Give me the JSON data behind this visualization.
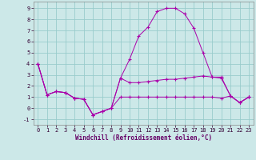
{
  "xlabel": "Windchill (Refroidissement éolien,°C)",
  "xlim": [
    -0.5,
    23.5
  ],
  "ylim": [
    -1.5,
    9.6
  ],
  "xticks": [
    0,
    1,
    2,
    3,
    4,
    5,
    6,
    7,
    8,
    9,
    10,
    11,
    12,
    13,
    14,
    15,
    16,
    17,
    18,
    19,
    20,
    21,
    22,
    23
  ],
  "yticks": [
    -1,
    0,
    1,
    2,
    3,
    4,
    5,
    6,
    7,
    8,
    9
  ],
  "bg_color": "#cce8e8",
  "grid_color": "#99cccc",
  "line_color": "#aa00aa",
  "y_big": [
    4.0,
    1.2,
    1.5,
    1.4,
    0.9,
    0.8,
    -0.6,
    -0.3,
    0.0,
    2.7,
    4.4,
    6.5,
    7.3,
    8.7,
    9.0,
    9.0,
    8.5,
    7.2,
    5.0,
    2.8,
    2.7,
    1.1,
    0.5,
    1.0
  ],
  "y_mid": [
    4.0,
    1.2,
    1.5,
    1.4,
    0.9,
    0.8,
    -0.6,
    -0.3,
    0.0,
    2.7,
    2.3,
    2.3,
    2.4,
    2.5,
    2.6,
    2.6,
    2.7,
    2.8,
    2.9,
    2.8,
    2.8,
    1.1,
    0.5,
    1.0
  ],
  "y_flat": [
    4.0,
    1.2,
    1.5,
    1.4,
    0.9,
    0.8,
    -0.6,
    -0.3,
    0.0,
    1.0,
    1.0,
    1.0,
    1.0,
    1.0,
    1.0,
    1.0,
    1.0,
    1.0,
    1.0,
    1.0,
    0.9,
    1.1,
    0.5,
    1.0
  ]
}
